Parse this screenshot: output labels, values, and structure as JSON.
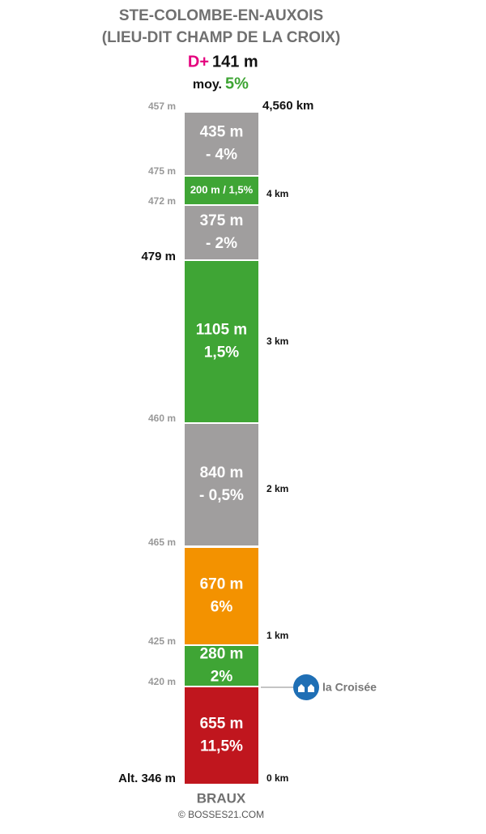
{
  "header": {
    "title": [
      "STE-COLOMBE-EN-AUXOIS",
      "(LIEU-DIT CHAMP DE LA CROIX)"
    ],
    "dplus_label": "D+",
    "dplus_value": "141 m",
    "avg_label": "moy.",
    "avg_value": "5%"
  },
  "segments": [
    {
      "text": [
        "435 m",
        "- 4%"
      ],
      "color": "#a09e9e"
    },
    {
      "text": [
        "200 m / 1,5%"
      ],
      "color": "#3fa535"
    },
    {
      "text": [
        "375 m",
        "- 2%"
      ],
      "color": "#a09e9e"
    },
    {
      "text": [
        "1105 m",
        "1,5%"
      ],
      "color": "#3fa535"
    },
    {
      "text": [
        "840 m",
        "- 0,5%"
      ],
      "color": "#a09e9e"
    },
    {
      "text": [
        "670 m",
        "6%"
      ],
      "color": "#f39200"
    },
    {
      "text": [
        "280 m",
        "2%"
      ],
      "color": "#3fa535"
    },
    {
      "text": [
        "655 m",
        "11,5%"
      ],
      "color": "#c0161e"
    }
  ],
  "altitudes": [
    "457 m",
    "475 m",
    "472 m",
    "479 m",
    "460 m",
    "465 m",
    "425 m",
    "420 m",
    "Alt. 346 m"
  ],
  "km_markers": [
    "4,560 km",
    "4 km",
    "3 km",
    "2 km",
    "1 km",
    "0 km"
  ],
  "poi": {
    "label": "la Croisée"
  },
  "footer": {
    "start": "BRAUX",
    "credit": "© BOSSES21.COM"
  }
}
